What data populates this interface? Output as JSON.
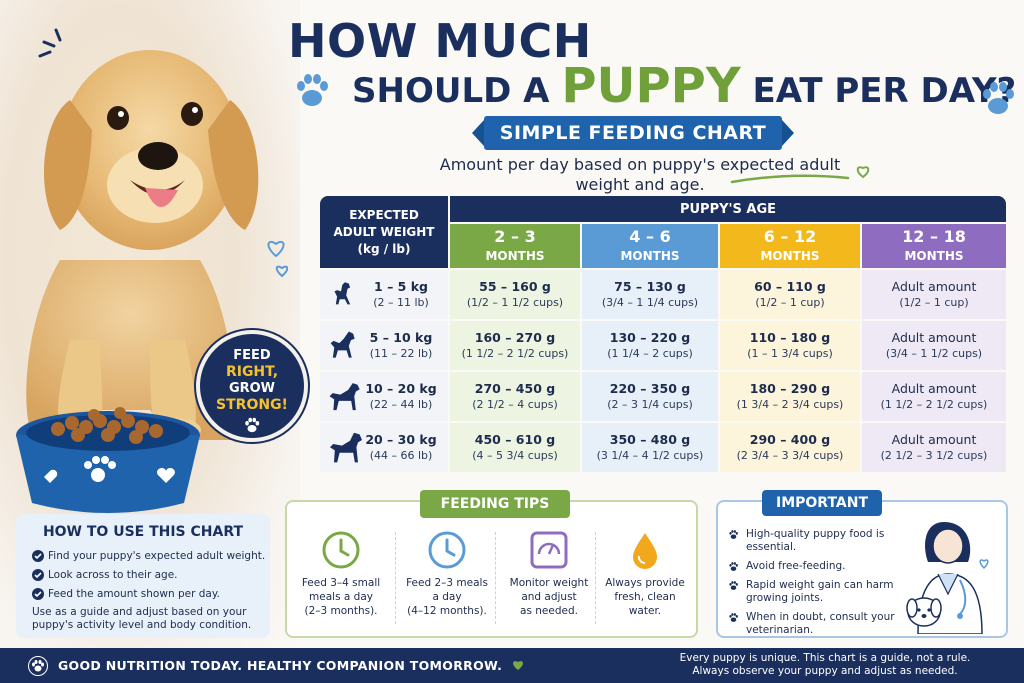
{
  "title": {
    "line1": "HOW MUCH",
    "line2_pre": "SHOULD A ",
    "line2_highlight": "PUPPY",
    "line2_post": " EAT PER DAY?"
  },
  "ribbon": "SIMPLE FEEDING CHART",
  "subtitle": "Amount per day based on puppy's expected adult weight and age.",
  "badge": {
    "line1": "FEED",
    "line2": "RIGHT,",
    "line3": "GROW",
    "line4": "STRONG!"
  },
  "table": {
    "weight_header": [
      "EXPECTED",
      "ADULT WEIGHT",
      "(kg / lb)"
    ],
    "age_header": "PUPPY'S AGE",
    "columns": [
      {
        "range": "2 – 3",
        "unit": "MONTHS",
        "color": "#7aa847",
        "bg": "#eef4e2"
      },
      {
        "range": "4 – 6",
        "unit": "MONTHS",
        "color": "#5a9bd5",
        "bg": "#e7f0f9"
      },
      {
        "range": "6 – 12",
        "unit": "MONTHS",
        "color": "#f2b81c",
        "bg": "#fdf4dc"
      },
      {
        "range": "12 – 18",
        "unit": "MONTHS",
        "color": "#8e6cc0",
        "bg": "#eee9f5"
      }
    ],
    "rows": [
      {
        "kg": "1 – 5 kg",
        "lb": "(2 – 11 lb)",
        "cells": [
          {
            "main": "55 – 160 g",
            "sub": "(1/2 – 1 1/2 cups)"
          },
          {
            "main": "75 – 130 g",
            "sub": "(3/4 – 1 1/4 cups)"
          },
          {
            "main": "60 – 110 g",
            "sub": "(1/2 – 1 cup)"
          },
          {
            "main": "Adult amount",
            "sub": "(1/2 – 1 cup)"
          }
        ]
      },
      {
        "kg": "5 – 10 kg",
        "lb": "(11 – 22 lb)",
        "cells": [
          {
            "main": "160 – 270 g",
            "sub": "(1 1/2 – 2 1/2 cups)"
          },
          {
            "main": "130 – 220 g",
            "sub": "(1 1/4 – 2 cups)"
          },
          {
            "main": "110 – 180 g",
            "sub": "(1 – 1 3/4 cups)"
          },
          {
            "main": "Adult amount",
            "sub": "(3/4 – 1 1/2 cups)"
          }
        ]
      },
      {
        "kg": "10 – 20 kg",
        "lb": "(22 – 44 lb)",
        "cells": [
          {
            "main": "270 – 450 g",
            "sub": "(2 1/2 – 4 cups)"
          },
          {
            "main": "220 – 350 g",
            "sub": "(2 – 3 1/4 cups)"
          },
          {
            "main": "180 – 290 g",
            "sub": "(1 3/4 – 2 3/4 cups)"
          },
          {
            "main": "Adult amount",
            "sub": "(1 1/2 – 2 1/2 cups)"
          }
        ]
      },
      {
        "kg": "20 – 30 kg",
        "lb": "(44 – 66 lb)",
        "cells": [
          {
            "main": "450 – 610 g",
            "sub": "(4 – 5 3/4 cups)"
          },
          {
            "main": "350 – 480 g",
            "sub": "(3 1/4 – 4 1/2 cups)"
          },
          {
            "main": "290 – 400 g",
            "sub": "(2 3/4 – 3 3/4 cups)"
          },
          {
            "main": "Adult amount",
            "sub": "(2 1/2 – 3 1/2 cups)"
          }
        ]
      }
    ]
  },
  "howto": {
    "title": "HOW TO USE THIS CHART",
    "items": [
      "Find your puppy's expected adult weight.",
      "Look across to their age.",
      "Feed the amount shown per day."
    ],
    "note": "Use as a guide and adjust based on your puppy's activity level and body condition."
  },
  "tips": {
    "title": "FEEDING TIPS",
    "items": [
      {
        "icon": "clock-icon",
        "l1": "Feed 3–4 small",
        "l2": "meals a day",
        "l3": "(2–3 months)."
      },
      {
        "icon": "clock-icon",
        "l1": "Feed 2–3 meals",
        "l2": "a day",
        "l3": "(4–12 months)."
      },
      {
        "icon": "scale-icon",
        "l1": "Monitor weight",
        "l2": "and adjust",
        "l3": "as needed."
      },
      {
        "icon": "water-drop-icon",
        "l1": "Always provide",
        "l2": "fresh, clean",
        "l3": "water."
      }
    ]
  },
  "important": {
    "title": "IMPORTANT",
    "items": [
      "High-quality puppy food is essential.",
      "Avoid free-feeding.",
      "Rapid weight gain can harm growing joints.",
      "When in doubt, consult your veterinarian."
    ]
  },
  "footer": {
    "left": "GOOD NUTRITION TODAY.  HEALTHY COMPANION TOMORROW.",
    "right1": "Every puppy is unique. This chart is a guide, not a rule.",
    "right2": "Always observe your puppy and adjust as needed."
  },
  "colors": {
    "navy": "#1b2f5e",
    "green": "#7aa847",
    "blue": "#1e63ac",
    "yellow": "#f6c12b"
  }
}
